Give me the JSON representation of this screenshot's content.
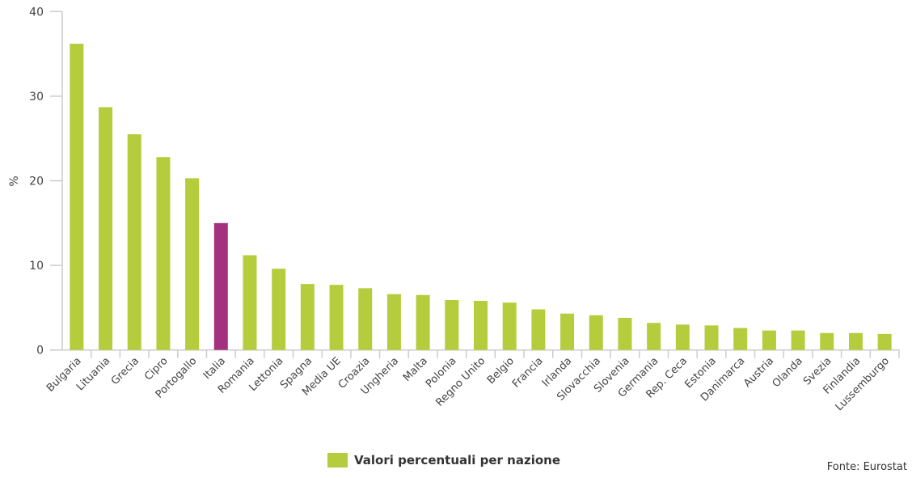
{
  "chart_data": {
    "type": "bar",
    "ylabel": "%",
    "ylim": [
      0,
      40
    ],
    "yticks": [
      0,
      10,
      20,
      30,
      40
    ],
    "categories": [
      "Bulgaria",
      "Lituania",
      "Grecia",
      "Cipro",
      "Portogallo",
      "Italia",
      "Romania",
      "Lettonia",
      "Spagna",
      "Media UE",
      "Croazia",
      "Ungheria",
      "Malta",
      "Polonia",
      "Regno Unito",
      "Belgio",
      "Francia",
      "Irlanda",
      "Slovacchia",
      "Slovenia",
      "Germania",
      "Rep. Ceca",
      "Estonia",
      "Danimarca",
      "Austria",
      "Olanda",
      "Svezia",
      "Finlandia",
      "Lussemburgo"
    ],
    "series": [
      {
        "name": "Valori percentuali per nazione",
        "values": [
          36.2,
          28.7,
          25.5,
          22.8,
          20.3,
          15.0,
          11.2,
          9.6,
          7.8,
          7.7,
          7.3,
          6.6,
          6.5,
          5.9,
          5.8,
          5.6,
          4.8,
          4.3,
          4.1,
          3.8,
          3.2,
          3.0,
          2.9,
          2.6,
          2.3,
          2.3,
          2.0,
          2.0,
          1.9
        ]
      }
    ],
    "highlight": {
      "category": "Italia",
      "color": "#a3317e"
    },
    "bar_color": "#b5cc3d",
    "grid": false,
    "legend_position": "bottom"
  },
  "legend": {
    "label": "Valori percentuali per nazione"
  },
  "source": "Fonte: Eurostat"
}
